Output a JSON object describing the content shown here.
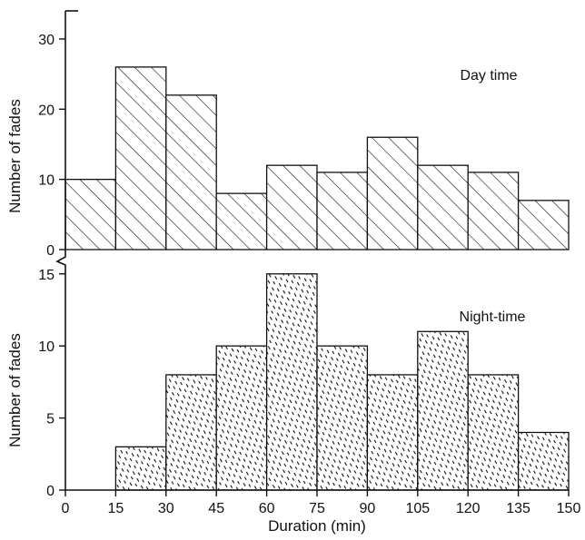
{
  "chart_data": {
    "type": "bar",
    "xlabel": "Duration (min)",
    "x_bin_edges": [
      0,
      15,
      30,
      45,
      60,
      75,
      90,
      105,
      120,
      135,
      150
    ],
    "x_tick_labels": [
      "0",
      "15",
      "30",
      "45",
      "60",
      "75",
      "90",
      "105",
      "120",
      "135",
      "150"
    ],
    "xlim": [
      0,
      150
    ],
    "panels": [
      {
        "title": "Day time",
        "ylabel": "Number of fades",
        "ylim": [
          0,
          34
        ],
        "y_ticks": [
          0,
          10,
          20,
          30
        ],
        "y_tick_labels": [
          "0",
          "10",
          "20",
          "30"
        ],
        "values": [
          10,
          26,
          22,
          8,
          12,
          11,
          16,
          12,
          11,
          7
        ],
        "fill": "diagonal-hatch"
      },
      {
        "title": "Night-time",
        "ylabel": "Number of fades",
        "ylim": [
          0,
          15.3
        ],
        "y_ticks": [
          0,
          5,
          10,
          15
        ],
        "y_tick_labels": [
          "0",
          "5",
          "10",
          "15"
        ],
        "values": [
          0,
          3,
          8,
          10,
          15,
          10,
          8,
          11,
          8,
          4
        ],
        "fill": "dashed-stipple"
      }
    ],
    "grid": false,
    "legend": "none",
    "colors": {
      "ink": "#111111",
      "background": "#ffffff"
    }
  }
}
